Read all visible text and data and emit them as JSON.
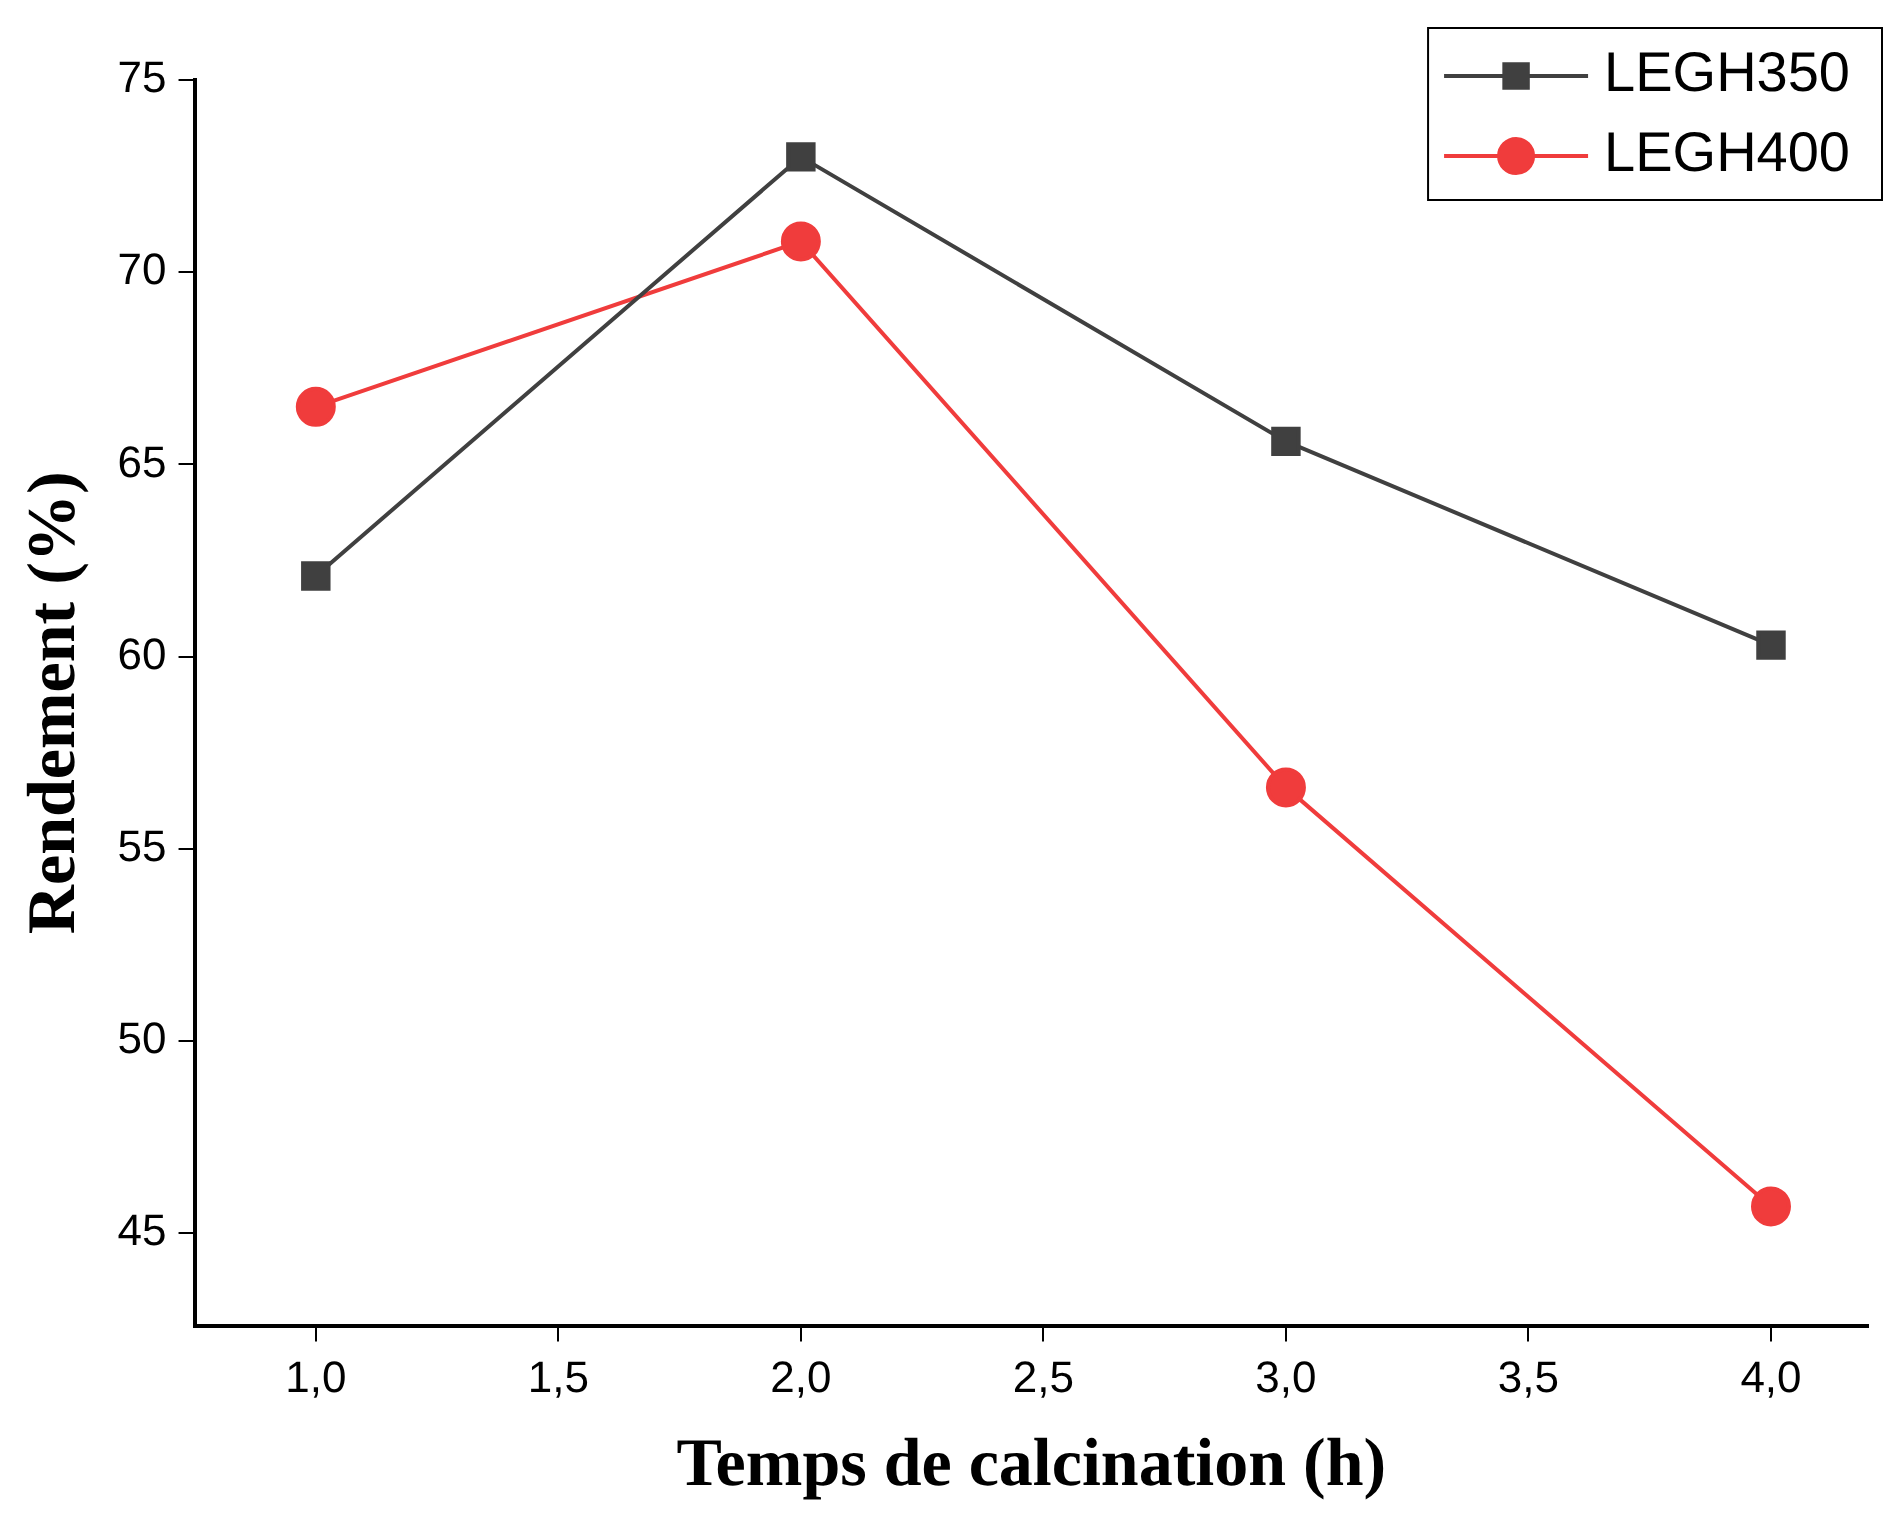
{
  "chart_data": {
    "type": "line",
    "xlabel": "Temps de calcination (h)",
    "ylabel": "Rendement (%)",
    "x": [
      1,
      2,
      3,
      4
    ],
    "series": [
      {
        "name": "LEGH350",
        "color": "#404040",
        "marker": "square",
        "values": [
          62.1,
          73.0,
          65.6,
          60.3
        ]
      },
      {
        "name": "LEGH400",
        "color": "#f03c3c",
        "marker": "circle",
        "values": [
          66.5,
          70.8,
          56.6,
          45.7
        ]
      }
    ],
    "xlim": [
      0.75,
      4.2
    ],
    "xticks": [
      {
        "value": 1,
        "label": "1,0"
      },
      {
        "value": 1.5,
        "label": "1,5"
      },
      {
        "value": 2,
        "label": "2,0"
      },
      {
        "value": 2.5,
        "label": "2,5"
      },
      {
        "value": 3,
        "label": "3,0"
      },
      {
        "value": 3.5,
        "label": "3,5"
      },
      {
        "value": 4,
        "label": "4,0"
      }
    ],
    "ylim": [
      42.6,
      75
    ],
    "yticks": [
      45,
      50,
      55,
      60,
      65,
      70,
      75
    ],
    "grid": false,
    "legend": "top right",
    "line_style": "solid"
  }
}
